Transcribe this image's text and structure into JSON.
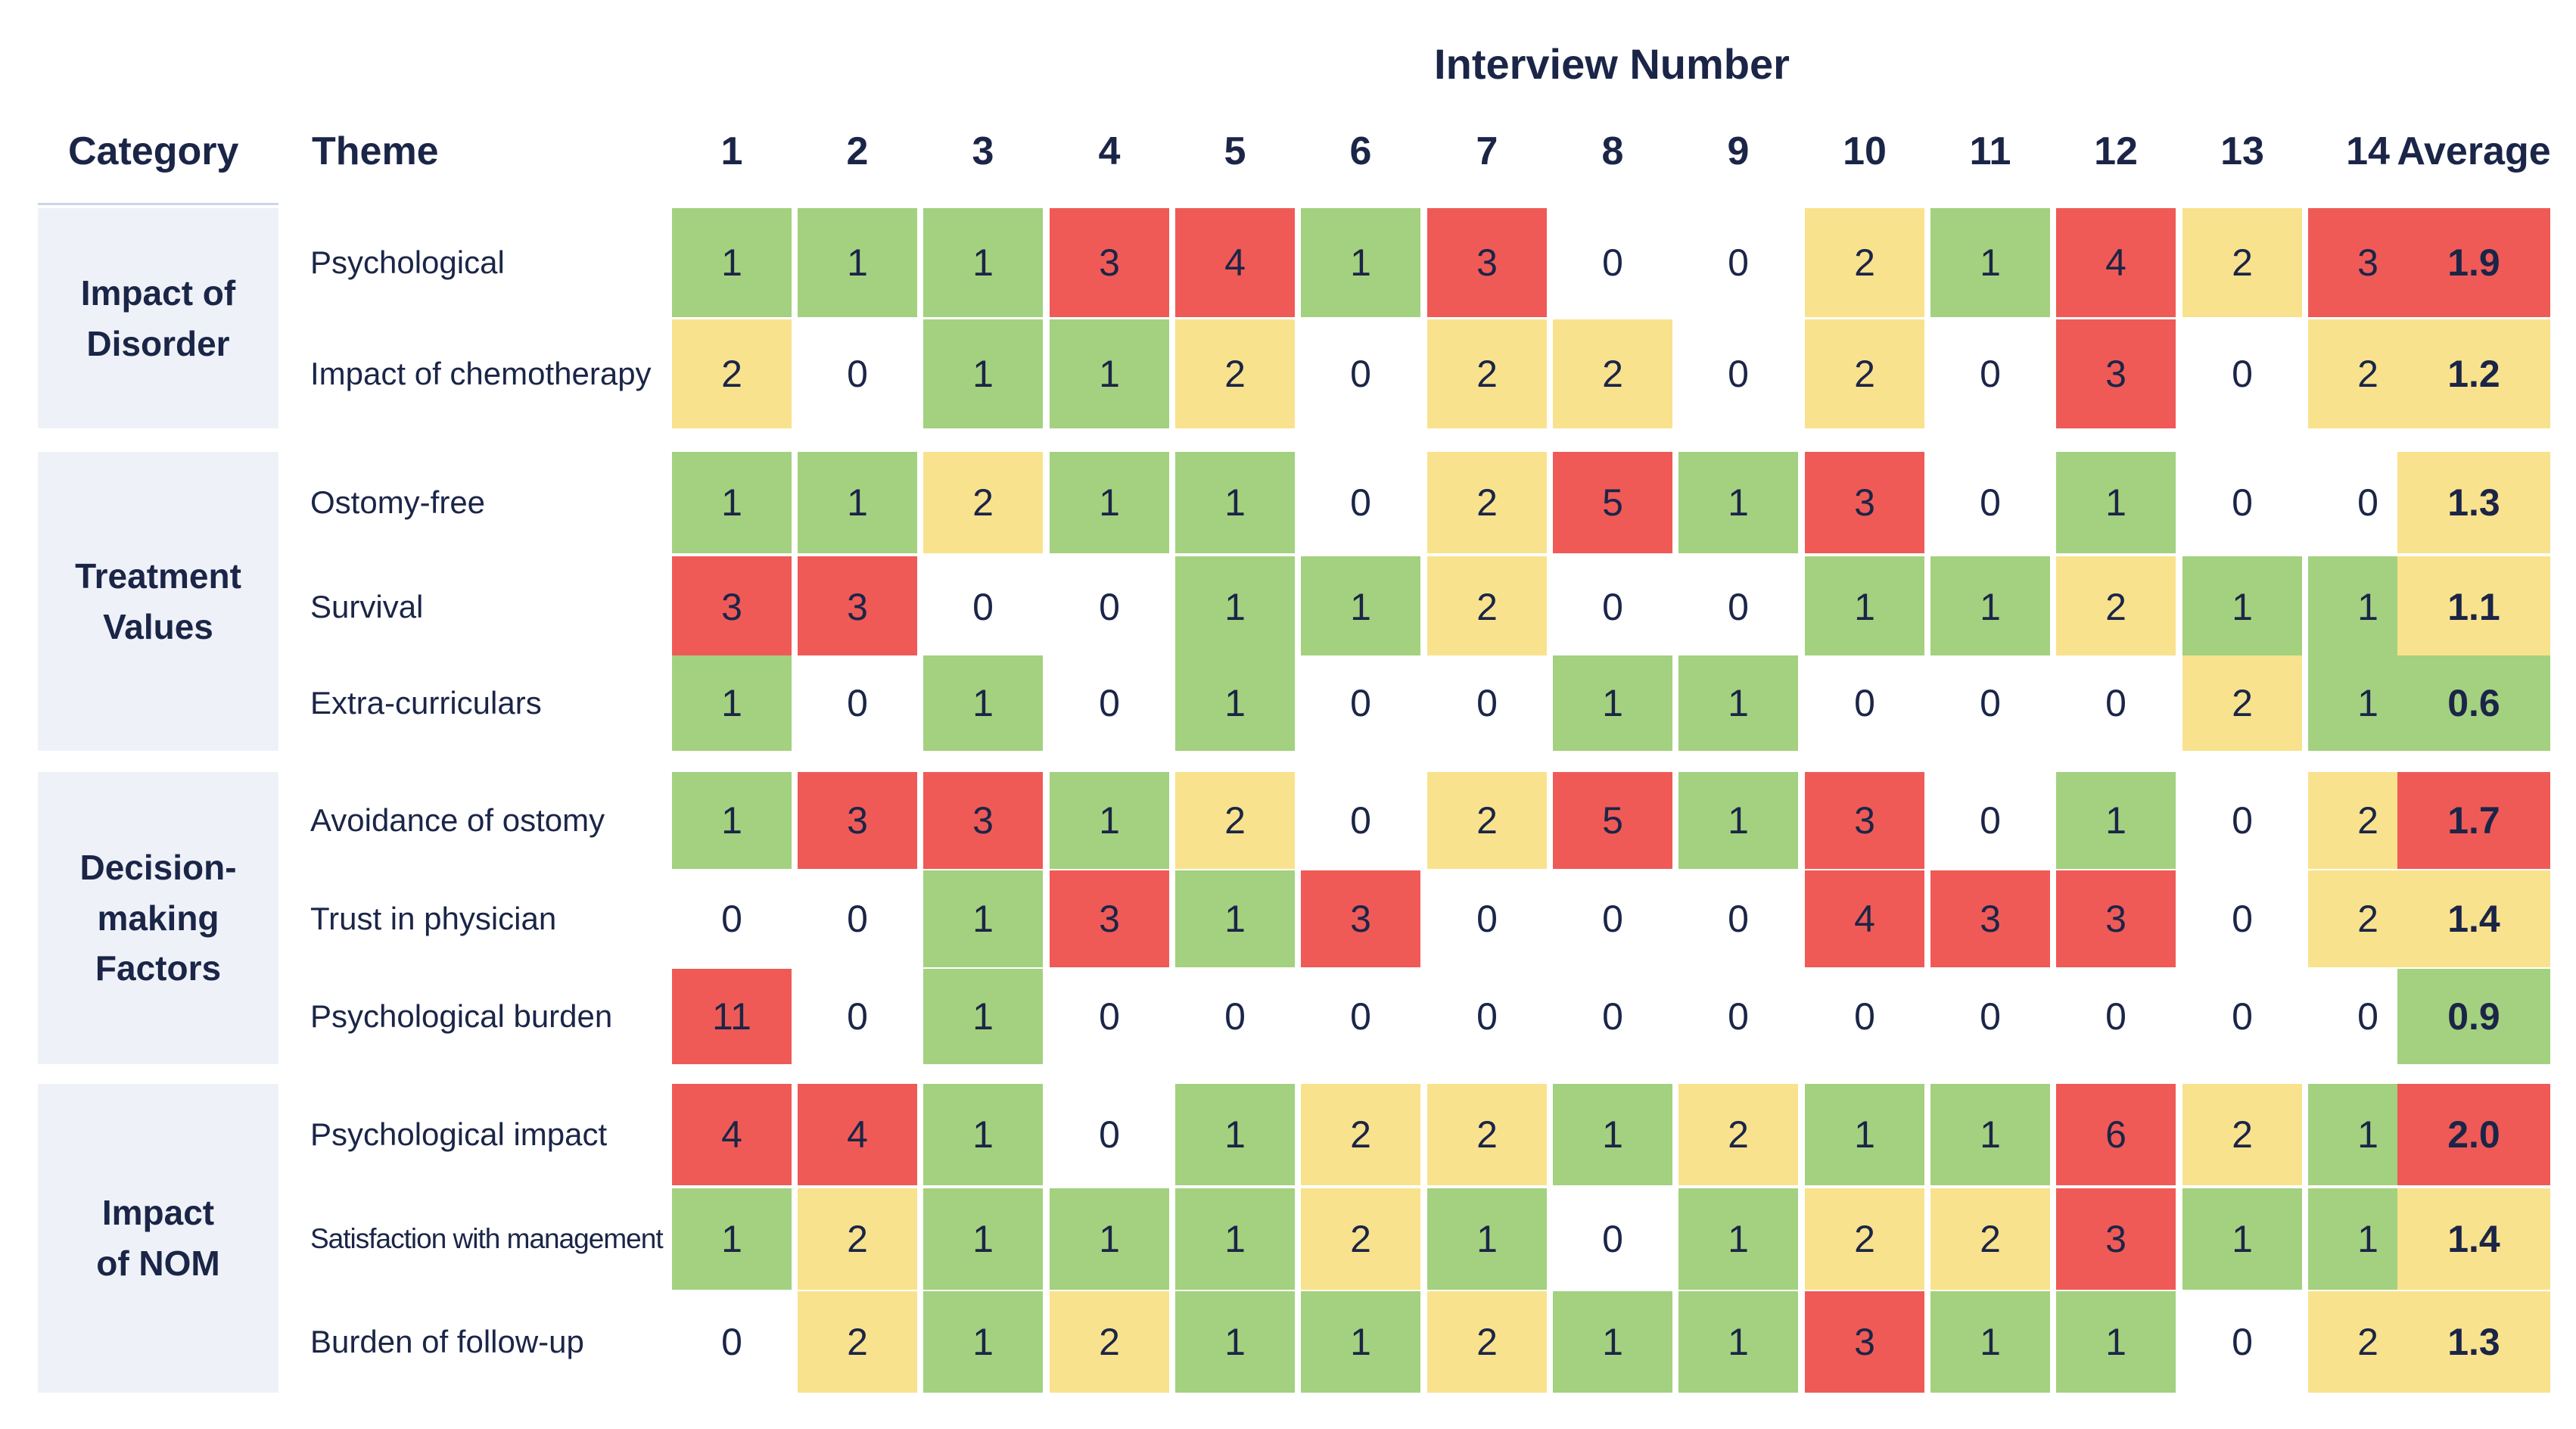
{
  "colors": {
    "green": "#a3d17f",
    "yellow": "#f9e28d",
    "red": "#ef5a57",
    "white": "#ffffff",
    "category_bg": "#eef2f8",
    "text": "#1b2547"
  },
  "color_rule": "0 = white, 1 = green, 2 = yellow, 3+ = red",
  "chart_data": {
    "type": "table",
    "title": "Interview Number",
    "header": {
      "category": "Category",
      "theme": "Theme",
      "interviews": [
        "1",
        "2",
        "3",
        "4",
        "5",
        "6",
        "7",
        "8",
        "9",
        "10",
        "11",
        "12",
        "13",
        "14"
      ],
      "average": "Average"
    },
    "groups": [
      {
        "category": "Impact of\nDisorder",
        "rows": [
          {
            "theme": "Psychological",
            "values": [
              1,
              1,
              1,
              3,
              4,
              1,
              3,
              0,
              0,
              2,
              1,
              4,
              2,
              3
            ],
            "average": "1.9",
            "average_color": "red"
          },
          {
            "theme": "Impact of chemotherapy",
            "values": [
              2,
              0,
              1,
              1,
              2,
              0,
              2,
              2,
              0,
              2,
              0,
              3,
              0,
              2
            ],
            "average": "1.2",
            "average_color": "yellow"
          }
        ]
      },
      {
        "category": "Treatment\nValues",
        "rows": [
          {
            "theme": "Ostomy-free",
            "values": [
              1,
              1,
              2,
              1,
              1,
              0,
              2,
              5,
              1,
              3,
              0,
              1,
              0,
              0
            ],
            "average": "1.3",
            "average_color": "yellow"
          },
          {
            "theme": "Survival",
            "values": [
              3,
              3,
              0,
              0,
              1,
              1,
              2,
              0,
              0,
              1,
              1,
              2,
              1,
              1
            ],
            "average": "1.1",
            "average_color": "yellow"
          },
          {
            "theme": "Extra-curriculars",
            "values": [
              1,
              0,
              1,
              0,
              1,
              0,
              0,
              1,
              1,
              0,
              0,
              0,
              2,
              1
            ],
            "average": "0.6",
            "average_color": "green"
          }
        ]
      },
      {
        "category": "Decision-making\nFactors",
        "rows": [
          {
            "theme": "Avoidance of ostomy",
            "values": [
              1,
              3,
              3,
              1,
              2,
              0,
              2,
              5,
              1,
              3,
              0,
              1,
              0,
              2
            ],
            "average": "1.7",
            "average_color": "red"
          },
          {
            "theme": "Trust in physician",
            "values": [
              0,
              0,
              1,
              3,
              1,
              3,
              0,
              0,
              0,
              4,
              3,
              3,
              0,
              2
            ],
            "average": "1.4",
            "average_color": "yellow"
          },
          {
            "theme": "Psychological burden",
            "values": [
              11,
              0,
              1,
              0,
              0,
              0,
              0,
              0,
              0,
              0,
              0,
              0,
              0,
              0
            ],
            "average": "0.9",
            "average_color": "green"
          }
        ]
      },
      {
        "category": "Impact\nof NOM",
        "rows": [
          {
            "theme": "Psychological impact",
            "values": [
              4,
              4,
              1,
              0,
              1,
              2,
              2,
              1,
              2,
              1,
              1,
              6,
              2,
              1
            ],
            "average": "2.0",
            "average_color": "red"
          },
          {
            "theme": "Satisfaction with management",
            "values": [
              1,
              2,
              1,
              1,
              1,
              2,
              1,
              0,
              1,
              2,
              2,
              3,
              1,
              1
            ],
            "average": "1.4",
            "average_color": "yellow"
          },
          {
            "theme": "Burden of follow-up",
            "values": [
              0,
              2,
              1,
              2,
              1,
              1,
              2,
              1,
              1,
              3,
              1,
              1,
              0,
              2
            ],
            "average": "1.3",
            "average_color": "yellow"
          }
        ]
      }
    ]
  }
}
